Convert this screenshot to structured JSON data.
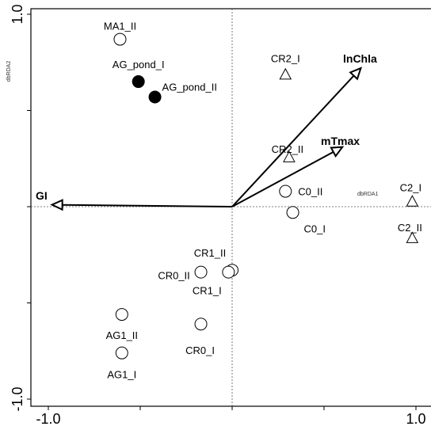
{
  "chart_data": {
    "type": "scatter",
    "title": "",
    "xlabel": "dbRDA1",
    "ylabel": "dbRDA2",
    "xlim": [
      -1.0,
      1.0
    ],
    "ylim": [
      -1.0,
      1.0
    ],
    "x_ticks": [
      {
        "value": -1.0,
        "label": "-1.0"
      },
      {
        "value": 1.0,
        "label": "1.0"
      }
    ],
    "y_ticks": [
      {
        "value": -1.0,
        "label": "-1.0"
      },
      {
        "value": 1.0,
        "label": "1.0"
      }
    ],
    "grid": false,
    "zero_lines": true,
    "points": [
      {
        "label": "MA1_II",
        "x": -0.61,
        "y": 0.87,
        "marker": "circle-open"
      },
      {
        "label": "AG_pond_I",
        "x": -0.51,
        "y": 0.65,
        "marker": "circle-filled"
      },
      {
        "label": "AG_pond_II",
        "x": -0.42,
        "y": 0.57,
        "marker": "circle-filled"
      },
      {
        "label": "CR2_I",
        "x": 0.29,
        "y": 0.69,
        "marker": "triangle-open"
      },
      {
        "label": "CR2_II",
        "x": 0.31,
        "y": 0.26,
        "marker": "triangle-open"
      },
      {
        "label": "C0_II",
        "x": 0.29,
        "y": 0.08,
        "marker": "circle-open"
      },
      {
        "label": "C0_I",
        "x": 0.33,
        "y": -0.03,
        "marker": "circle-open"
      },
      {
        "label": "C2_I",
        "x": 0.98,
        "y": 0.03,
        "marker": "triangle-open"
      },
      {
        "label": "C2_II",
        "x": 0.98,
        "y": -0.16,
        "marker": "triangle-open"
      },
      {
        "label": "CR1_II",
        "x": 0.0,
        "y": -0.33,
        "marker": "circle-open"
      },
      {
        "label": "CR1_I",
        "x": -0.02,
        "y": -0.34,
        "marker": "circle-open"
      },
      {
        "label": "CR0_II",
        "x": -0.17,
        "y": -0.34,
        "marker": "circle-open"
      },
      {
        "label": "AG1_II",
        "x": -0.6,
        "y": -0.56,
        "marker": "circle-open"
      },
      {
        "label": "CR0_I",
        "x": -0.17,
        "y": -0.61,
        "marker": "circle-open"
      },
      {
        "label": "AG1_I",
        "x": -0.6,
        "y": -0.76,
        "marker": "circle-open"
      }
    ],
    "vectors": [
      {
        "label": "lnChla",
        "x": 0.7,
        "y": 0.72
      },
      {
        "label": "mTmax",
        "x": 0.6,
        "y": 0.31
      },
      {
        "label": "GI",
        "x": -0.98,
        "y": 0.01
      }
    ]
  }
}
